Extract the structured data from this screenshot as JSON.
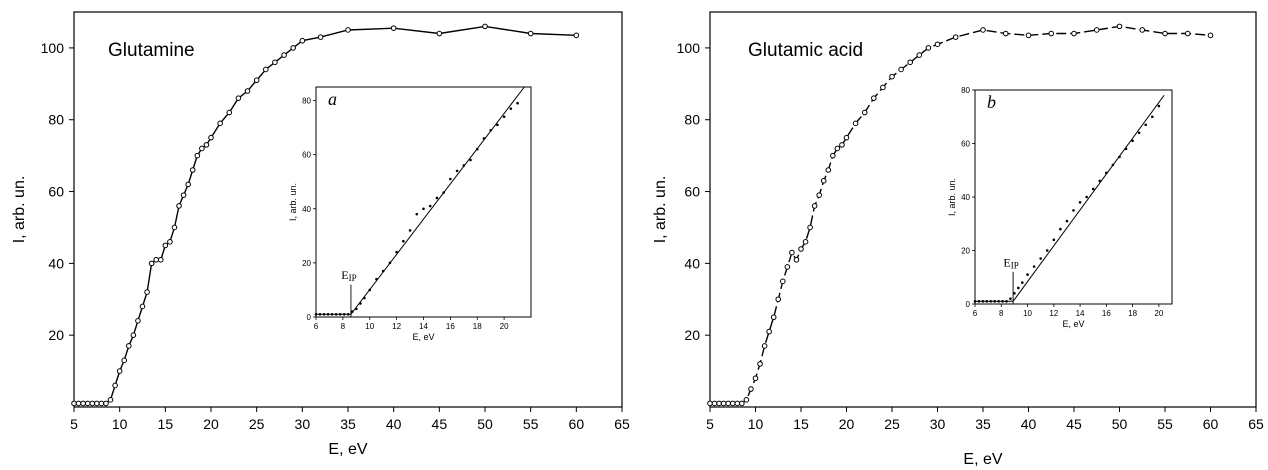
{
  "chart_data": [
    {
      "type": "line",
      "title": "Glutamine",
      "xlabel": "E, eV",
      "ylabel": "I, arb. un.",
      "xlim": [
        5,
        65
      ],
      "ylim": [
        0,
        110
      ],
      "x_ticks": [
        5,
        10,
        15,
        20,
        25,
        30,
        35,
        40,
        45,
        50,
        55,
        60,
        65
      ],
      "y_ticks": [
        20,
        40,
        60,
        80,
        100
      ],
      "line_style": "solid",
      "series": [
        {
          "x": [
            5,
            5.5,
            6,
            6.5,
            7,
            7.5,
            8,
            8.5,
            9,
            9.5,
            10,
            10.5,
            11,
            11.5,
            12,
            12.5,
            13,
            13.5,
            14,
            14.5,
            15,
            15.5,
            16,
            16.5,
            17,
            17.5,
            18,
            18.5,
            19,
            19.5,
            20,
            21,
            22,
            23,
            24,
            25,
            26,
            27,
            28,
            29,
            30,
            32,
            35,
            40,
            45,
            50,
            55,
            60
          ],
          "y": [
            1,
            1,
            1,
            1,
            1,
            1,
            1,
            1,
            2,
            6,
            10,
            13,
            17,
            20,
            24,
            28,
            32,
            40,
            41,
            41,
            45,
            46,
            50,
            56,
            59,
            62,
            66,
            70,
            72,
            73,
            75,
            79,
            82,
            86,
            88,
            91,
            94,
            96,
            98,
            100,
            102,
            103,
            105,
            105.5,
            104,
            106,
            104,
            103.5
          ]
        }
      ],
      "inset": {
        "label": "a",
        "xlabel": "E, eV",
        "ylabel": "I, arb. un.",
        "xlim": [
          6,
          22
        ],
        "ylim": [
          0,
          85
        ],
        "x_ticks": [
          6,
          8,
          10,
          12,
          14,
          16,
          18,
          20
        ],
        "y_ticks": [
          0,
          20,
          40,
          60,
          80
        ],
        "annotation": {
          "main": "E",
          "sub": "IP",
          "x": 8.6
        },
        "points": {
          "x": [
            6,
            6.3,
            6.6,
            6.9,
            7.2,
            7.5,
            7.8,
            8.1,
            8.4,
            8.7,
            9,
            9.3,
            9.6,
            10,
            10.5,
            11,
            11.5,
            12,
            12.5,
            13,
            13.5,
            14,
            14.5,
            15,
            15.5,
            16,
            16.5,
            17,
            17.5,
            18,
            18.5,
            19,
            19.5,
            20,
            20.5,
            21
          ],
          "y": [
            1,
            1,
            1,
            1,
            1,
            1,
            1,
            1,
            1,
            2,
            3,
            5,
            7,
            10,
            14,
            17,
            20,
            24,
            28,
            32,
            38,
            40,
            41,
            44,
            46,
            51,
            54,
            56,
            58,
            62,
            66,
            69,
            71,
            74,
            77,
            79
          ]
        },
        "fit_line": {
          "x": [
            6,
            8.6,
            21.5
          ],
          "y": [
            1,
            1,
            85
          ]
        }
      }
    },
    {
      "type": "line",
      "title": "Glutamic acid",
      "xlabel": "E, eV",
      "ylabel": "I, arb. un.",
      "xlim": [
        5,
        65
      ],
      "ylim": [
        0,
        110
      ],
      "x_ticks": [
        5,
        10,
        15,
        20,
        25,
        30,
        35,
        40,
        45,
        50,
        55,
        60,
        65
      ],
      "y_ticks": [
        20,
        40,
        60,
        80,
        100
      ],
      "line_style": "dashed",
      "series": [
        {
          "x": [
            5,
            5.5,
            6,
            6.5,
            7,
            7.5,
            8,
            8.5,
            9,
            9.5,
            10,
            10.5,
            11,
            11.5,
            12,
            12.5,
            13,
            13.5,
            14,
            14.5,
            15,
            15.5,
            16,
            16.5,
            17,
            17.5,
            18,
            18.5,
            19,
            19.5,
            20,
            21,
            22,
            23,
            24,
            25,
            26,
            27,
            28,
            29,
            30,
            32,
            35,
            37.5,
            40,
            42.5,
            45,
            47.5,
            50,
            52.5,
            55,
            57.5,
            60
          ],
          "y": [
            1,
            1,
            1,
            1,
            1,
            1,
            1,
            1,
            2,
            5,
            8,
            12,
            17,
            21,
            25,
            30,
            35,
            39,
            43,
            41,
            44,
            46,
            50,
            56,
            59,
            63,
            66,
            70,
            72,
            73,
            75,
            79,
            82,
            86,
            89,
            92,
            94,
            96,
            98,
            100,
            101,
            103,
            105,
            104,
            103.5,
            104,
            104,
            105,
            106,
            105,
            104,
            104,
            103.5
          ]
        }
      ],
      "inset": {
        "label": "b",
        "xlabel": "E, eV",
        "ylabel": "I, arb. un.",
        "xlim": [
          6,
          21
        ],
        "ylim": [
          0,
          80
        ],
        "x_ticks": [
          6,
          8,
          10,
          12,
          14,
          16,
          18,
          20
        ],
        "y_ticks": [
          0,
          20,
          40,
          60,
          80
        ],
        "annotation": {
          "main": "E",
          "sub": "IP",
          "x": 8.9
        },
        "points": {
          "x": [
            6,
            6.3,
            6.6,
            6.9,
            7.2,
            7.5,
            7.8,
            8.1,
            8.4,
            8.7,
            9,
            9.3,
            9.6,
            10,
            10.5,
            11,
            11.5,
            12,
            12.5,
            13,
            13.5,
            14,
            14.5,
            15,
            15.5,
            16,
            16.5,
            17,
            17.5,
            18,
            18.5,
            19,
            19.5,
            20
          ],
          "y": [
            1,
            1,
            1,
            1,
            1,
            1,
            1,
            1,
            1,
            2,
            4,
            6,
            8,
            11,
            14,
            17,
            20,
            24,
            28,
            31,
            35,
            38,
            40,
            43,
            46,
            49,
            52,
            55,
            58,
            61,
            64,
            67,
            70,
            74
          ]
        },
        "fit_line": {
          "x": [
            6,
            8.9,
            20.4
          ],
          "y": [
            1,
            1,
            78
          ]
        }
      }
    }
  ]
}
